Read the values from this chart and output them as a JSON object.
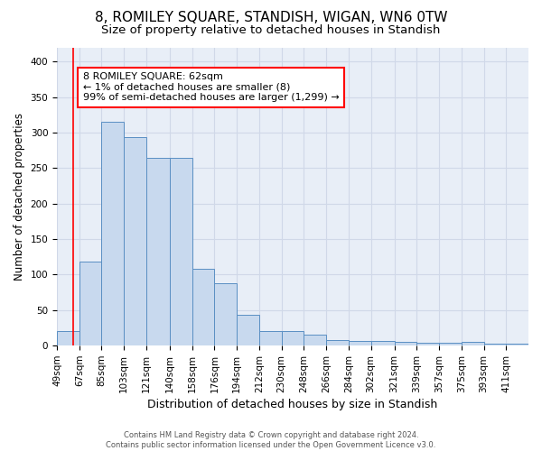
{
  "title": "8, ROMILEY SQUARE, STANDISH, WIGAN, WN6 0TW",
  "subtitle": "Size of property relative to detached houses in Standish",
  "xlabel": "Distribution of detached houses by size in Standish",
  "ylabel": "Number of detached properties",
  "bin_labels": [
    "49sqm",
    "67sqm",
    "85sqm",
    "103sqm",
    "121sqm",
    "140sqm",
    "158sqm",
    "176sqm",
    "194sqm",
    "212sqm",
    "230sqm",
    "248sqm",
    "266sqm",
    "284sqm",
    "302sqm",
    "321sqm",
    "339sqm",
    "357sqm",
    "375sqm",
    "393sqm",
    "411sqm"
  ],
  "bin_edges": [
    49,
    67,
    85,
    103,
    121,
    140,
    158,
    176,
    194,
    212,
    230,
    248,
    266,
    284,
    302,
    321,
    339,
    357,
    375,
    393,
    411,
    429
  ],
  "bar_heights": [
    20,
    118,
    315,
    293,
    265,
    265,
    108,
    88,
    44,
    21,
    20,
    15,
    8,
    6,
    6,
    5,
    4,
    4,
    5,
    3,
    3
  ],
  "bar_color": "#c8d9ee",
  "bar_edge_color": "#5a8fc3",
  "grid_color": "#d0d8e8",
  "bg_color": "#e8eef7",
  "red_line_x": 62,
  "annotation_line1": "8 ROMILEY SQUARE: 62sqm",
  "annotation_line2": "← 1% of detached houses are smaller (8)",
  "annotation_line3": "99% of semi-detached houses are larger (1,299) →",
  "annotation_box_color": "white",
  "annotation_box_edge": "red",
  "ylim": [
    0,
    420
  ],
  "yticks": [
    0,
    50,
    100,
    150,
    200,
    250,
    300,
    350,
    400
  ],
  "footer_line1": "Contains HM Land Registry data © Crown copyright and database right 2024.",
  "footer_line2": "Contains public sector information licensed under the Open Government Licence v3.0.",
  "title_fontsize": 11,
  "subtitle_fontsize": 9.5,
  "ylabel_fontsize": 8.5,
  "xlabel_fontsize": 9,
  "tick_fontsize": 7.5,
  "annotation_fontsize": 8,
  "footer_fontsize": 6
}
